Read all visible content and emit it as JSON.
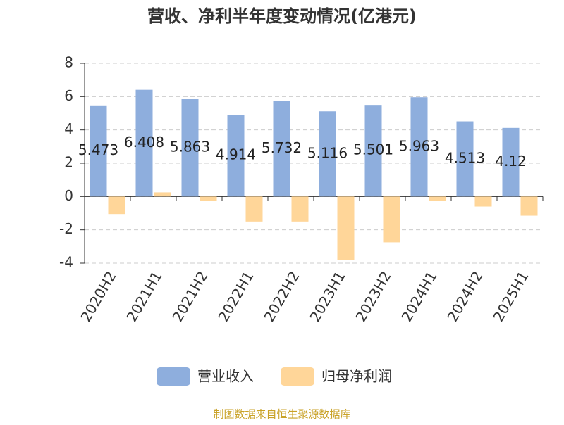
{
  "chart_data": {
    "type": "bar",
    "title": "营收、净利半年度变动情况(亿港元)",
    "categories": [
      "2020H2",
      "2021H1",
      "2021H2",
      "2022H1",
      "2022H2",
      "2023H1",
      "2023H2",
      "2024H1",
      "2024H2",
      "2025H1"
    ],
    "series": [
      {
        "name": "营业收入",
        "color": "#8eaedd",
        "values": [
          5.473,
          6.408,
          5.863,
          4.914,
          5.732,
          5.116,
          5.501,
          5.963,
          4.513,
          4.12
        ],
        "show_labels": true
      },
      {
        "name": "归母净利润",
        "color": "#ffd699",
        "values": [
          -1.05,
          0.25,
          -0.25,
          -1.5,
          -1.5,
          -3.8,
          -2.75,
          -0.25,
          -0.6,
          -1.15
        ]
      }
    ],
    "ylim": [
      -4,
      8
    ],
    "yticks": [
      -4,
      -2,
      0,
      2,
      4,
      6,
      8
    ],
    "grid": true,
    "legend": "bottom",
    "source": "制图数据来自恒生聚源数据库"
  }
}
